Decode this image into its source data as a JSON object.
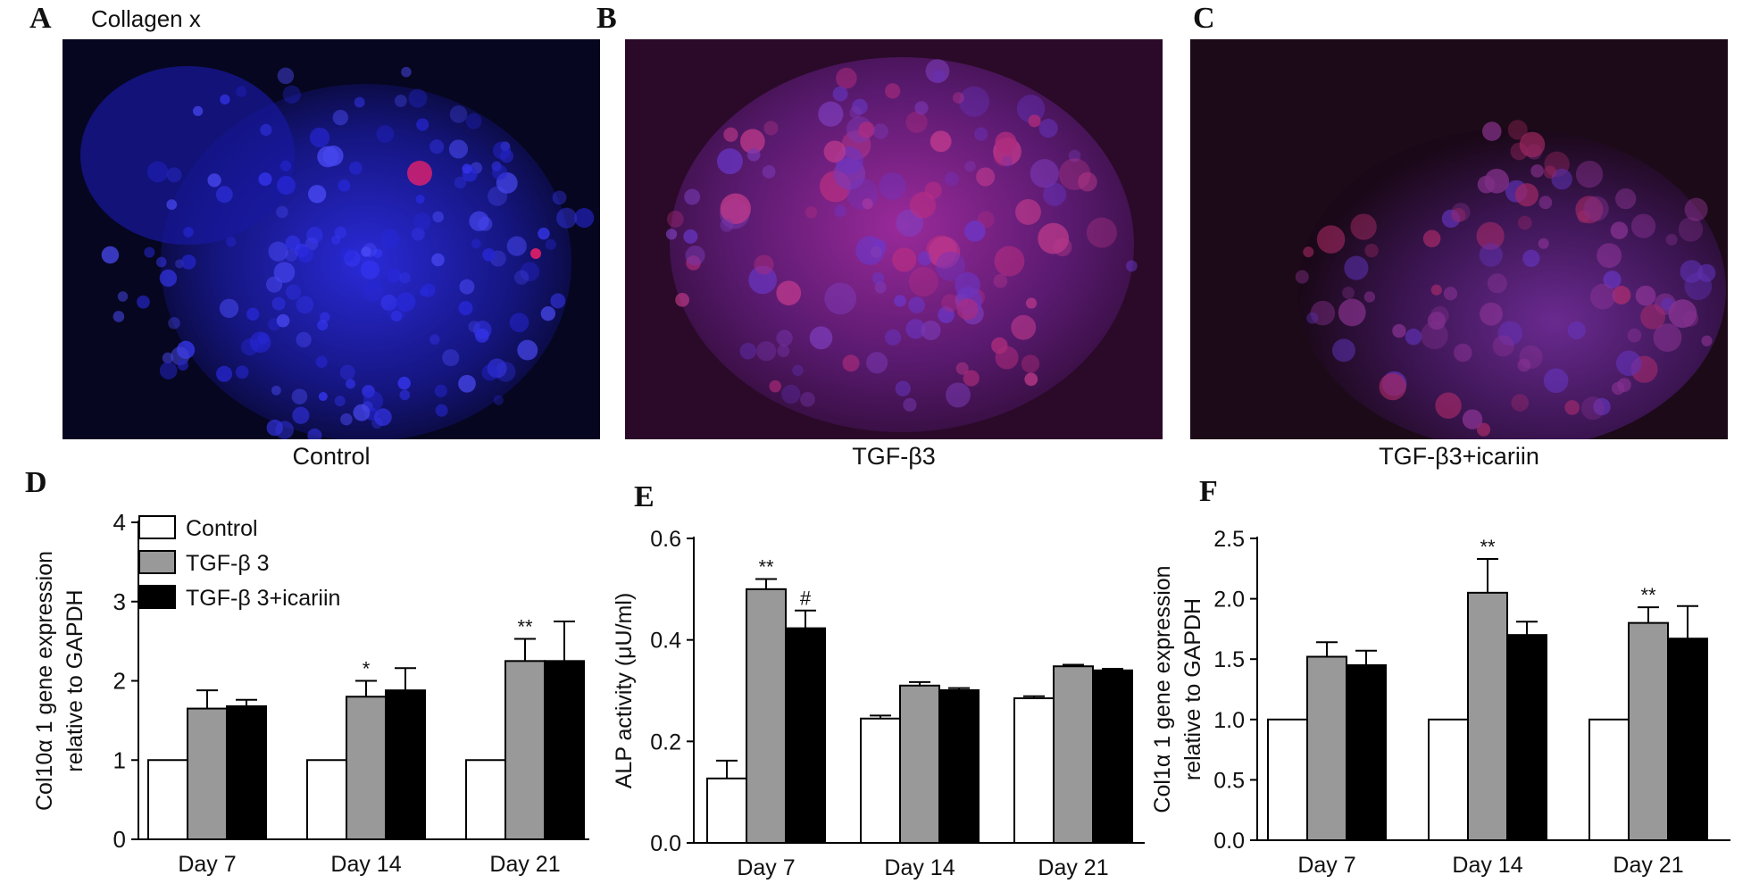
{
  "panels": {
    "A": {
      "letter": "A",
      "stain": "Collagen x",
      "caption": "Control"
    },
    "B": {
      "letter": "B",
      "caption": "TGF-β3"
    },
    "C": {
      "letter": "C",
      "caption": "TGF-β3+icariin"
    },
    "D": {
      "letter": "D"
    },
    "E": {
      "letter": "E"
    },
    "F": {
      "letter": "F"
    }
  },
  "colors": {
    "control": "#ffffff",
    "tgfb3": "#999999",
    "tgfb3_icariin": "#000000",
    "nuclei": "#2a2aff",
    "collagen": "#ff2266"
  },
  "chart_data": [
    {
      "id": "D",
      "type": "bar",
      "ylabel": [
        "Col10α 1 gene expression",
        "relative to GAPDH"
      ],
      "categories": [
        "Day 7",
        "Day 14",
        "Day 21"
      ],
      "ylim": [
        0,
        4
      ],
      "yticks": [
        "0",
        "1",
        "2",
        "3",
        "4"
      ],
      "legend_position": "top-left",
      "series": [
        {
          "name": "Control",
          "color": "#ffffff",
          "values": [
            1.0,
            1.0,
            1.0
          ],
          "errors": [
            0,
            0,
            0
          ],
          "marks": [
            "",
            "",
            ""
          ]
        },
        {
          "name": "TGF-β 3",
          "color": "#999999",
          "values": [
            1.65,
            1.8,
            2.25
          ],
          "errors": [
            0.23,
            0.2,
            0.28
          ],
          "marks": [
            "",
            "*",
            "**"
          ]
        },
        {
          "name": "TGF-β 3+icariin",
          "color": "#000000",
          "values": [
            1.68,
            1.88,
            2.25
          ],
          "errors": [
            0.08,
            0.28,
            0.5
          ],
          "marks": [
            "",
            "",
            ""
          ]
        }
      ]
    },
    {
      "id": "E",
      "type": "bar",
      "ylabel": [
        "ALP activity (μU/ml)"
      ],
      "categories": [
        "Day 7",
        "Day 14",
        "Day 21"
      ],
      "ylim": [
        0,
        0.6
      ],
      "yticks": [
        "0.0",
        "0.2",
        "0.4",
        "0.6"
      ],
      "series": [
        {
          "color": "#ffffff",
          "values": [
            0.127,
            0.245,
            0.285
          ],
          "errors": [
            0.035,
            0.006,
            0.004
          ],
          "marks": [
            "",
            "",
            ""
          ]
        },
        {
          "color": "#999999",
          "values": [
            0.5,
            0.31,
            0.348
          ],
          "errors": [
            0.02,
            0.007,
            0.003
          ],
          "marks": [
            "**",
            "",
            ""
          ]
        },
        {
          "color": "#000000",
          "values": [
            0.423,
            0.301,
            0.34
          ],
          "errors": [
            0.035,
            0.004,
            0.003
          ],
          "marks": [
            "#",
            "",
            ""
          ]
        }
      ]
    },
    {
      "id": "F",
      "type": "bar",
      "ylabel": [
        "Col1α 1 gene expression",
        "relative to GAPDH"
      ],
      "categories": [
        "Day 7",
        "Day 14",
        "Day 21"
      ],
      "ylim": [
        0,
        2.5
      ],
      "yticks": [
        "0.0",
        "0.5",
        "1.0",
        "1.5",
        "2.0",
        "2.5"
      ],
      "series": [
        {
          "color": "#ffffff",
          "values": [
            1.0,
            1.0,
            1.0
          ],
          "errors": [
            0,
            0,
            0
          ],
          "marks": [
            "",
            "",
            ""
          ]
        },
        {
          "color": "#999999",
          "values": [
            1.52,
            2.05,
            1.8
          ],
          "errors": [
            0.12,
            0.28,
            0.13
          ],
          "marks": [
            "",
            "**",
            "**"
          ]
        },
        {
          "color": "#000000",
          "values": [
            1.45,
            1.7,
            1.67
          ],
          "errors": [
            0.12,
            0.11,
            0.27
          ],
          "marks": [
            "",
            "",
            ""
          ]
        }
      ]
    }
  ]
}
